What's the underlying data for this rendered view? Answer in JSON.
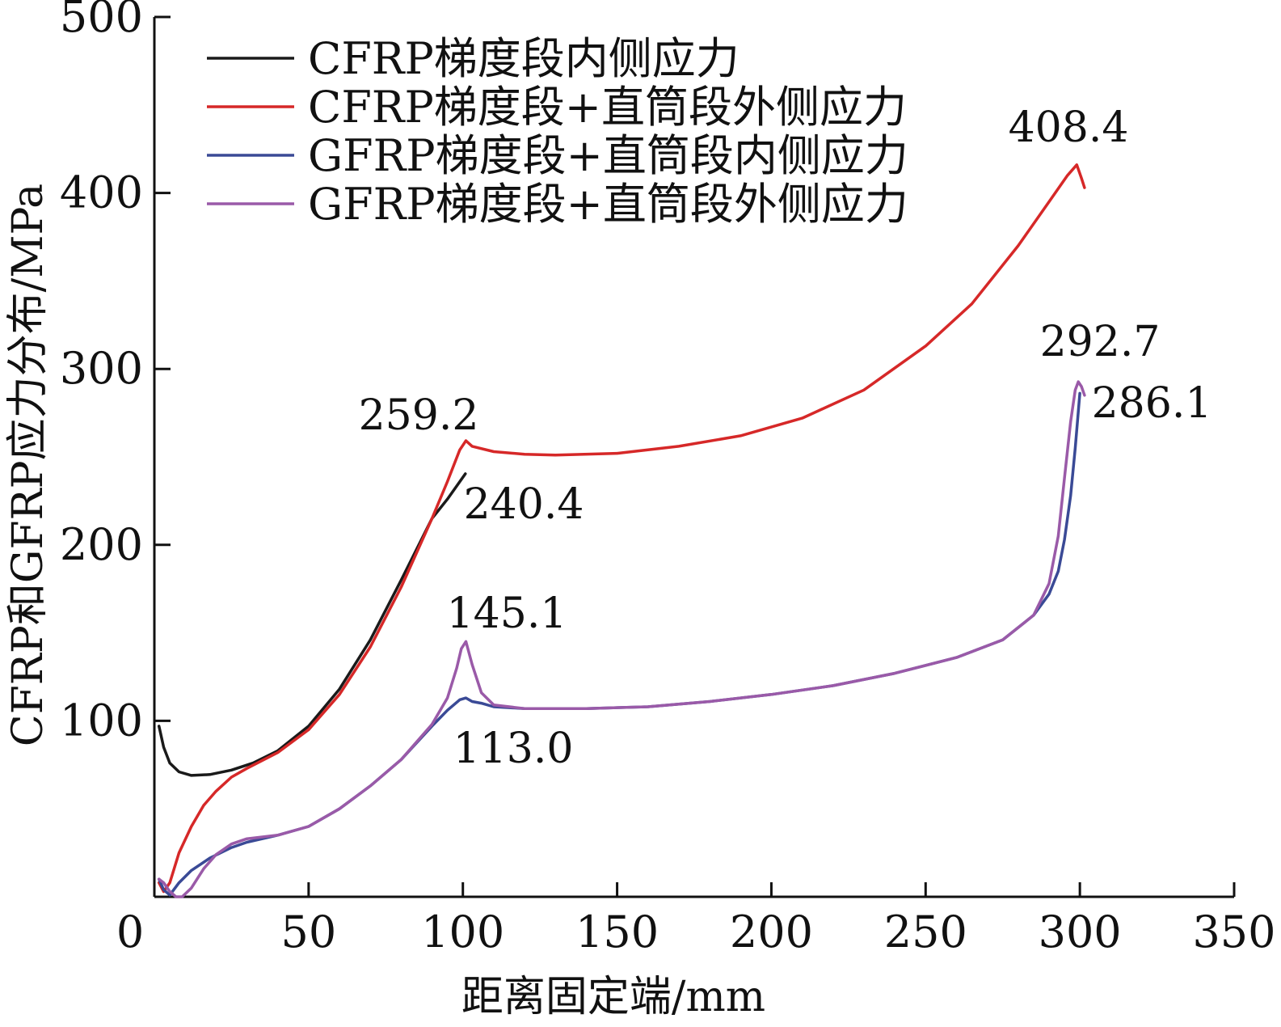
{
  "chart_data": {
    "type": "line",
    "xlabel": "距离固定端/mm",
    "ylabel": "CFRP和GFRP应力分布/MPa",
    "xlim": [
      0,
      350
    ],
    "ylim": [
      0,
      500
    ],
    "xticks": [
      0,
      50,
      100,
      150,
      200,
      250,
      300,
      350
    ],
    "xtick_labels": [
      "0",
      "50",
      "100",
      "150",
      "200",
      "250",
      "300",
      "350"
    ],
    "yticks": [
      100,
      200,
      300,
      400,
      500
    ],
    "ytick_labels": [
      "100",
      "200",
      "300",
      "400",
      "500"
    ],
    "grid": false,
    "legend_position": "top-left",
    "series": [
      {
        "name": "CFRP梯度段内侧应力",
        "color": "#1a1a1a",
        "x": [
          1.5,
          3,
          5,
          8,
          12,
          18,
          25,
          32,
          40,
          50,
          60,
          70,
          80,
          90,
          95,
          100.8
        ],
        "y": [
          97,
          85,
          76,
          71,
          69,
          69.5,
          72,
          76,
          83,
          97,
          118,
          146,
          180,
          215,
          226,
          240.4
        ]
      },
      {
        "name": "CFRP梯度段+直筒段外侧应力",
        "color": "#d62828",
        "x": [
          1.5,
          3,
          5,
          8,
          12,
          16,
          20,
          25,
          30,
          40,
          50,
          60,
          70,
          80,
          90,
          95,
          99,
          101,
          103,
          110,
          120,
          130,
          150,
          170,
          190,
          210,
          230,
          250,
          265,
          280,
          290,
          296,
          299,
          300.5,
          301.5
        ],
        "y": [
          8,
          3,
          8,
          25,
          40,
          52,
          60,
          68,
          73,
          82,
          95,
          115,
          142,
          176,
          215,
          236,
          254,
          259.2,
          256,
          253,
          251.5,
          251,
          252,
          256,
          262,
          272,
          288,
          313,
          337,
          370,
          395,
          410,
          416,
          408.4,
          403
        ]
      },
      {
        "name": "GFRP梯度段+直筒段内侧应力",
        "color": "#3a4a96",
        "x": [
          1.5,
          3,
          5,
          8,
          12,
          18,
          25,
          30,
          40,
          50,
          60,
          70,
          80,
          90,
          95,
          99,
          101,
          103,
          106,
          110,
          120,
          140,
          160,
          180,
          200,
          220,
          240,
          260,
          275,
          285,
          290,
          293,
          295,
          297,
          298.5,
          300
        ],
        "y": [
          10,
          4,
          1,
          8,
          15,
          22,
          28,
          31,
          35,
          40,
          50,
          63,
          78,
          97,
          106,
          112,
          113.0,
          111,
          110,
          108,
          107,
          107,
          108,
          111,
          115,
          120,
          127,
          136,
          146,
          160,
          172,
          185,
          203,
          228,
          255,
          286.1
        ]
      },
      {
        "name": "GFRP梯度段+直筒段外侧应力",
        "color": "#9a5aa8",
        "x": [
          1.5,
          3,
          5,
          7,
          9,
          12,
          16,
          20,
          25,
          30,
          40,
          50,
          60,
          70,
          80,
          90,
          95,
          98,
          99.5,
          101,
          103,
          106,
          110,
          120,
          140,
          160,
          180,
          200,
          220,
          240,
          260,
          275,
          285,
          290,
          293,
          295,
          297,
          298.5,
          299.5,
          300.5,
          301.5
        ],
        "y": [
          10,
          8,
          3,
          0,
          0,
          5,
          16,
          24,
          30,
          33,
          35,
          40,
          50,
          63,
          78,
          98,
          113,
          130,
          141,
          145.1,
          132,
          116,
          109,
          107,
          107,
          108,
          111,
          115,
          120,
          127,
          136,
          146,
          160,
          178,
          205,
          238,
          270,
          288,
          292.7,
          290,
          285
        ]
      }
    ],
    "annotations": [
      {
        "text": "408.4",
        "series": 1
      },
      {
        "text": "259.2",
        "series": 1
      },
      {
        "text": "240.4",
        "series": 0
      },
      {
        "text": "292.7",
        "series": 3
      },
      {
        "text": "286.1",
        "series": 2
      },
      {
        "text": "145.1",
        "series": 3
      },
      {
        "text": "113.0",
        "series": 2
      }
    ]
  }
}
